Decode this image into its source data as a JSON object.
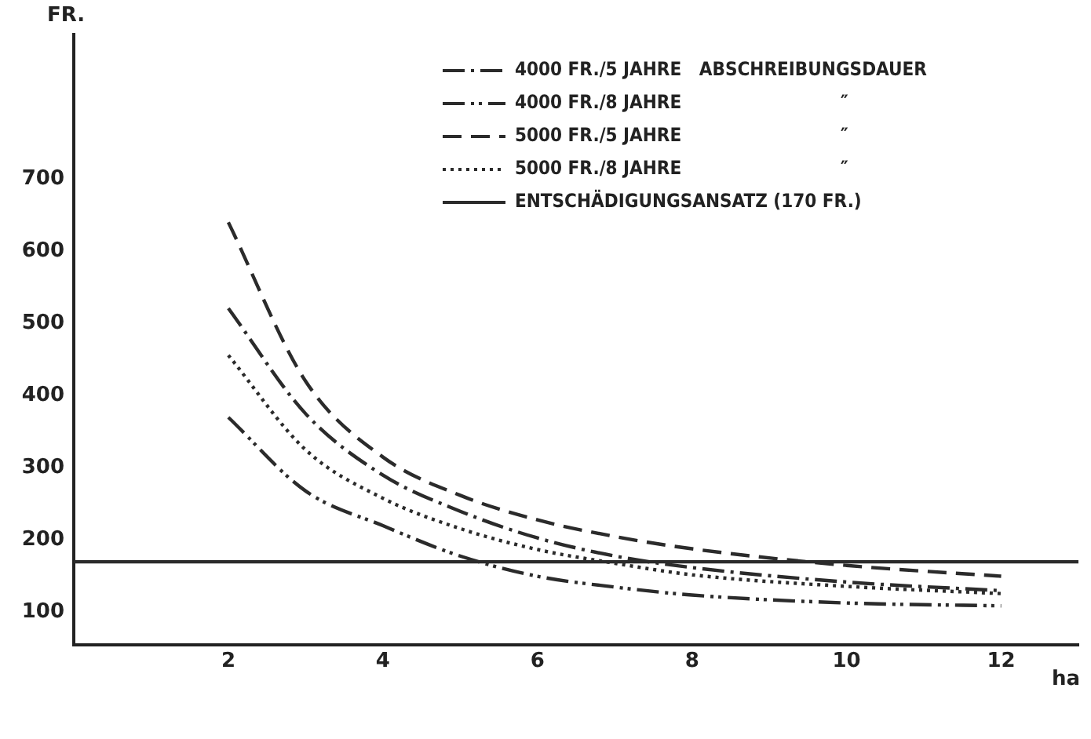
{
  "chart_data": {
    "type": "line",
    "xlabel": "ha",
    "ylabel": "FR.",
    "x": [
      2,
      3,
      4,
      5,
      6,
      7,
      8,
      10,
      12
    ],
    "series": [
      {
        "name": "4000 FR./5 JAHRE   ABSCHREIBUNGSDAUER",
        "color": "#2b2b2b",
        "line_style": "dashdot",
        "values": [
          521,
          375,
          290,
          240,
          203,
          178,
          162,
          142,
          130
        ]
      },
      {
        "name": "4000 FR./8 JAHRE                           ″",
        "color": "#2b2b2b",
        "line_style": "dashdotdot",
        "values": [
          370,
          268,
          220,
          178,
          150,
          135,
          124,
          113,
          109
        ]
      },
      {
        "name": "5000 FR./5 JAHRE                           ″",
        "color": "#2b2b2b",
        "line_style": "dashed",
        "values": [
          640,
          420,
          315,
          262,
          228,
          205,
          188,
          165,
          150
        ]
      },
      {
        "name": "5000 FR./8 JAHRE                           ″",
        "color": "#2b2b2b",
        "line_style": "dotted",
        "values": [
          456,
          325,
          258,
          216,
          187,
          168,
          152,
          136,
          126
        ]
      }
    ],
    "ref_lines": [
      {
        "axis": "y",
        "value": 170,
        "label": "ENTSCHÄDIGUNGSANSATZ (170 FR.)",
        "color": "#2b2b2b",
        "line_style": "solid"
      }
    ],
    "xlim": [
      0,
      13
    ],
    "xticks": [
      2,
      4,
      6,
      8,
      10,
      12
    ],
    "ylim": [
      55,
      900
    ],
    "yticks": [
      100,
      200,
      300,
      400,
      500,
      600,
      700
    ],
    "grid": false,
    "legend": "top right",
    "marker": "none"
  }
}
